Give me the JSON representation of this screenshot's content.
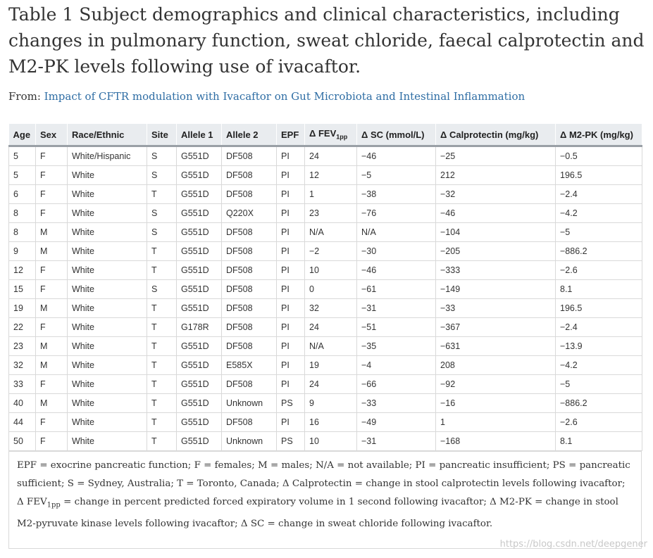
{
  "title": "Table 1 Subject demographics and clinical characteristics, including changes in pulmonary function, sweat chloride, faecal calprotectin and M2-PK levels following use of ivacaftor.",
  "from_label": "From: ",
  "from_link": "Impact of CFTR modulation with Ivacaftor on Gut Microbiota and Intestinal Inflammation",
  "table": {
    "headers": [
      "Age",
      "Sex",
      "Race/Ethnic",
      "Site",
      "Allele 1",
      "Allele 2",
      "EPF",
      "Δ FEV",
      "Δ SC (mmol/L)",
      "Δ Calprotectin (mg/kg)",
      "Δ M2-PK (mg/kg)"
    ],
    "fev_sub": "1pp",
    "rows": [
      [
        "5",
        "F",
        "White/Hispanic",
        "S",
        "G551D",
        "DF508",
        "PI",
        "24",
        "−46",
        "−25",
        "−0.5"
      ],
      [
        "5",
        "F",
        "White",
        "S",
        "G551D",
        "DF508",
        "PI",
        "12",
        "−5",
        "212",
        "196.5"
      ],
      [
        "6",
        "F",
        "White",
        "T",
        "G551D",
        "DF508",
        "PI",
        "1",
        "−38",
        "−32",
        "−2.4"
      ],
      [
        "8",
        "F",
        "White",
        "S",
        "G551D",
        "Q220X",
        "PI",
        "23",
        "−76",
        "−46",
        "−4.2"
      ],
      [
        "8",
        "M",
        "White",
        "S",
        "G551D",
        "DF508",
        "PI",
        "N/A",
        "N/A",
        "−104",
        "−5"
      ],
      [
        "9",
        "M",
        "White",
        "T",
        "G551D",
        "DF508",
        "PI",
        "−2",
        "−30",
        "−205",
        "−886.2"
      ],
      [
        "12",
        "F",
        "White",
        "T",
        "G551D",
        "DF508",
        "PI",
        "10",
        "−46",
        "−333",
        "−2.6"
      ],
      [
        "15",
        "F",
        "White",
        "S",
        "G551D",
        "DF508",
        "PI",
        "0",
        "−61",
        "−149",
        "8.1"
      ],
      [
        "19",
        "M",
        "White",
        "T",
        "G551D",
        "DF508",
        "PI",
        "32",
        "−31",
        "−33",
        "196.5"
      ],
      [
        "22",
        "F",
        "White",
        "T",
        "G178R",
        "DF508",
        "PI",
        "24",
        "−51",
        "−367",
        "−2.4"
      ],
      [
        "23",
        "M",
        "White",
        "T",
        "G551D",
        "DF508",
        "PI",
        "N/A",
        "−35",
        "−631",
        "−13.9"
      ],
      [
        "32",
        "M",
        "White",
        "T",
        "G551D",
        "E585X",
        "PI",
        "19",
        "−4",
        "208",
        "−4.2"
      ],
      [
        "33",
        "F",
        "White",
        "T",
        "G551D",
        "DF508",
        "PI",
        "24",
        "−66",
        "−92",
        "−5"
      ],
      [
        "40",
        "M",
        "White",
        "T",
        "G551D",
        "Unknown",
        "PS",
        "9",
        "−33",
        "−16",
        "−886.2"
      ],
      [
        "44",
        "F",
        "White",
        "T",
        "G551D",
        "DF508",
        "PI",
        "16",
        "−49",
        "1",
        "−2.6"
      ],
      [
        "50",
        "F",
        "White",
        "T",
        "G551D",
        "Unknown",
        "PS",
        "10",
        "−31",
        "−168",
        "8.1"
      ]
    ]
  },
  "footnote": {
    "part1": "EPF = exocrine pancreatic function; F = females; M = males; N/A = not available; PI = pancreatic insufficient; PS = pancreatic sufficient; S = Sydney, Australia; T = Toronto, Canada; Δ Calprotectin = change in stool calprotectin levels following ivacaftor; Δ FEV",
    "sub": "1pp",
    "part2": " = change in percent predicted forced expiratory volume in 1 second following ivacaftor; Δ M2-PK = change in stool M2-pyruvate kinase levels following ivacaftor; Δ SC = change in sweat chloride following ivacaftor."
  },
  "watermark": "https://blog.csdn.net/deepgener"
}
